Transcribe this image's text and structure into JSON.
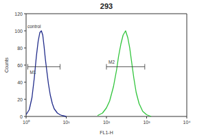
{
  "chart_data": {
    "type": "line",
    "title": "293",
    "x_label": "FL1-H",
    "y_label": "Counts",
    "log": "x",
    "grid": false,
    "xlim": [
      1,
      10000
    ],
    "xticks": [
      {
        "value": 1,
        "label": "10⁰"
      },
      {
        "value": 10,
        "label": "10¹"
      },
      {
        "value": 100,
        "label": "10²"
      },
      {
        "value": 1000,
        "label": "10³"
      },
      {
        "value": 10000,
        "label": "10⁴"
      }
    ],
    "ylim": [
      0,
      120
    ],
    "yticks": [
      0,
      20,
      40,
      60,
      80,
      100,
      120
    ],
    "series": [
      {
        "name": "control",
        "color": "#1f2a8a",
        "x": [
          1.0,
          1.2,
          1.4,
          1.6,
          1.8,
          2.0,
          2.2,
          2.4,
          2.6,
          2.8,
          3.0,
          3.3,
          3.6,
          4.0,
          4.5,
          5,
          6,
          7,
          8,
          10
        ],
        "values": [
          2,
          8,
          22,
          45,
          70,
          88,
          98,
          100,
          95,
          82,
          68,
          52,
          38,
          25,
          15,
          9,
          4,
          2,
          1,
          0
        ]
      },
      {
        "color": "#2fc43a",
        "x": [
          60,
          80,
          100,
          120,
          150,
          180,
          200,
          230,
          260,
          300,
          340,
          380,
          420,
          480,
          550,
          650,
          800,
          1000,
          1300
        ],
        "values": [
          1,
          4,
          10,
          18,
          35,
          55,
          70,
          85,
          95,
          100,
          92,
          80,
          65,
          45,
          28,
          15,
          6,
          2,
          0
        ]
      }
    ],
    "gates": [
      {
        "label": "M1",
        "x": [
          1.1,
          7
        ],
        "y": 58
      },
      {
        "label": "M2",
        "x": [
          100,
          900
        ],
        "y": 58
      }
    ]
  }
}
